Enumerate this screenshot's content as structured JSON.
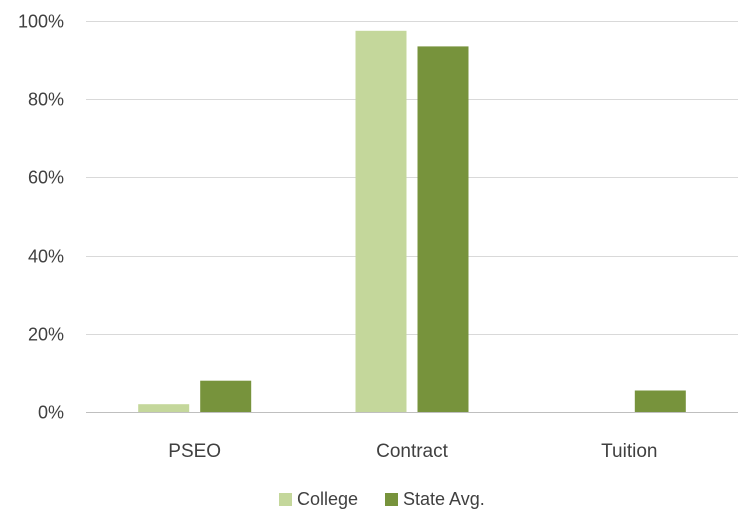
{
  "chart_data": {
    "type": "bar",
    "categories": [
      "PSEO",
      "Contract",
      "Tuition"
    ],
    "series": [
      {
        "name": "College",
        "color": "#c4d79b",
        "values": [
          0.02,
          0.975,
          0
        ]
      },
      {
        "name": "State Avg.",
        "color": "#77933c",
        "values": [
          0.08,
          0.935,
          0.055
        ]
      }
    ],
    "ylim": [
      0,
      1
    ],
    "yticks": [
      0,
      0.2,
      0.4,
      0.6,
      0.8,
      1.0
    ],
    "ytick_labels": [
      "0%",
      "20%",
      "40%",
      "60%",
      "80%",
      "100%"
    ],
    "grid": true,
    "legend_position": "bottom"
  }
}
